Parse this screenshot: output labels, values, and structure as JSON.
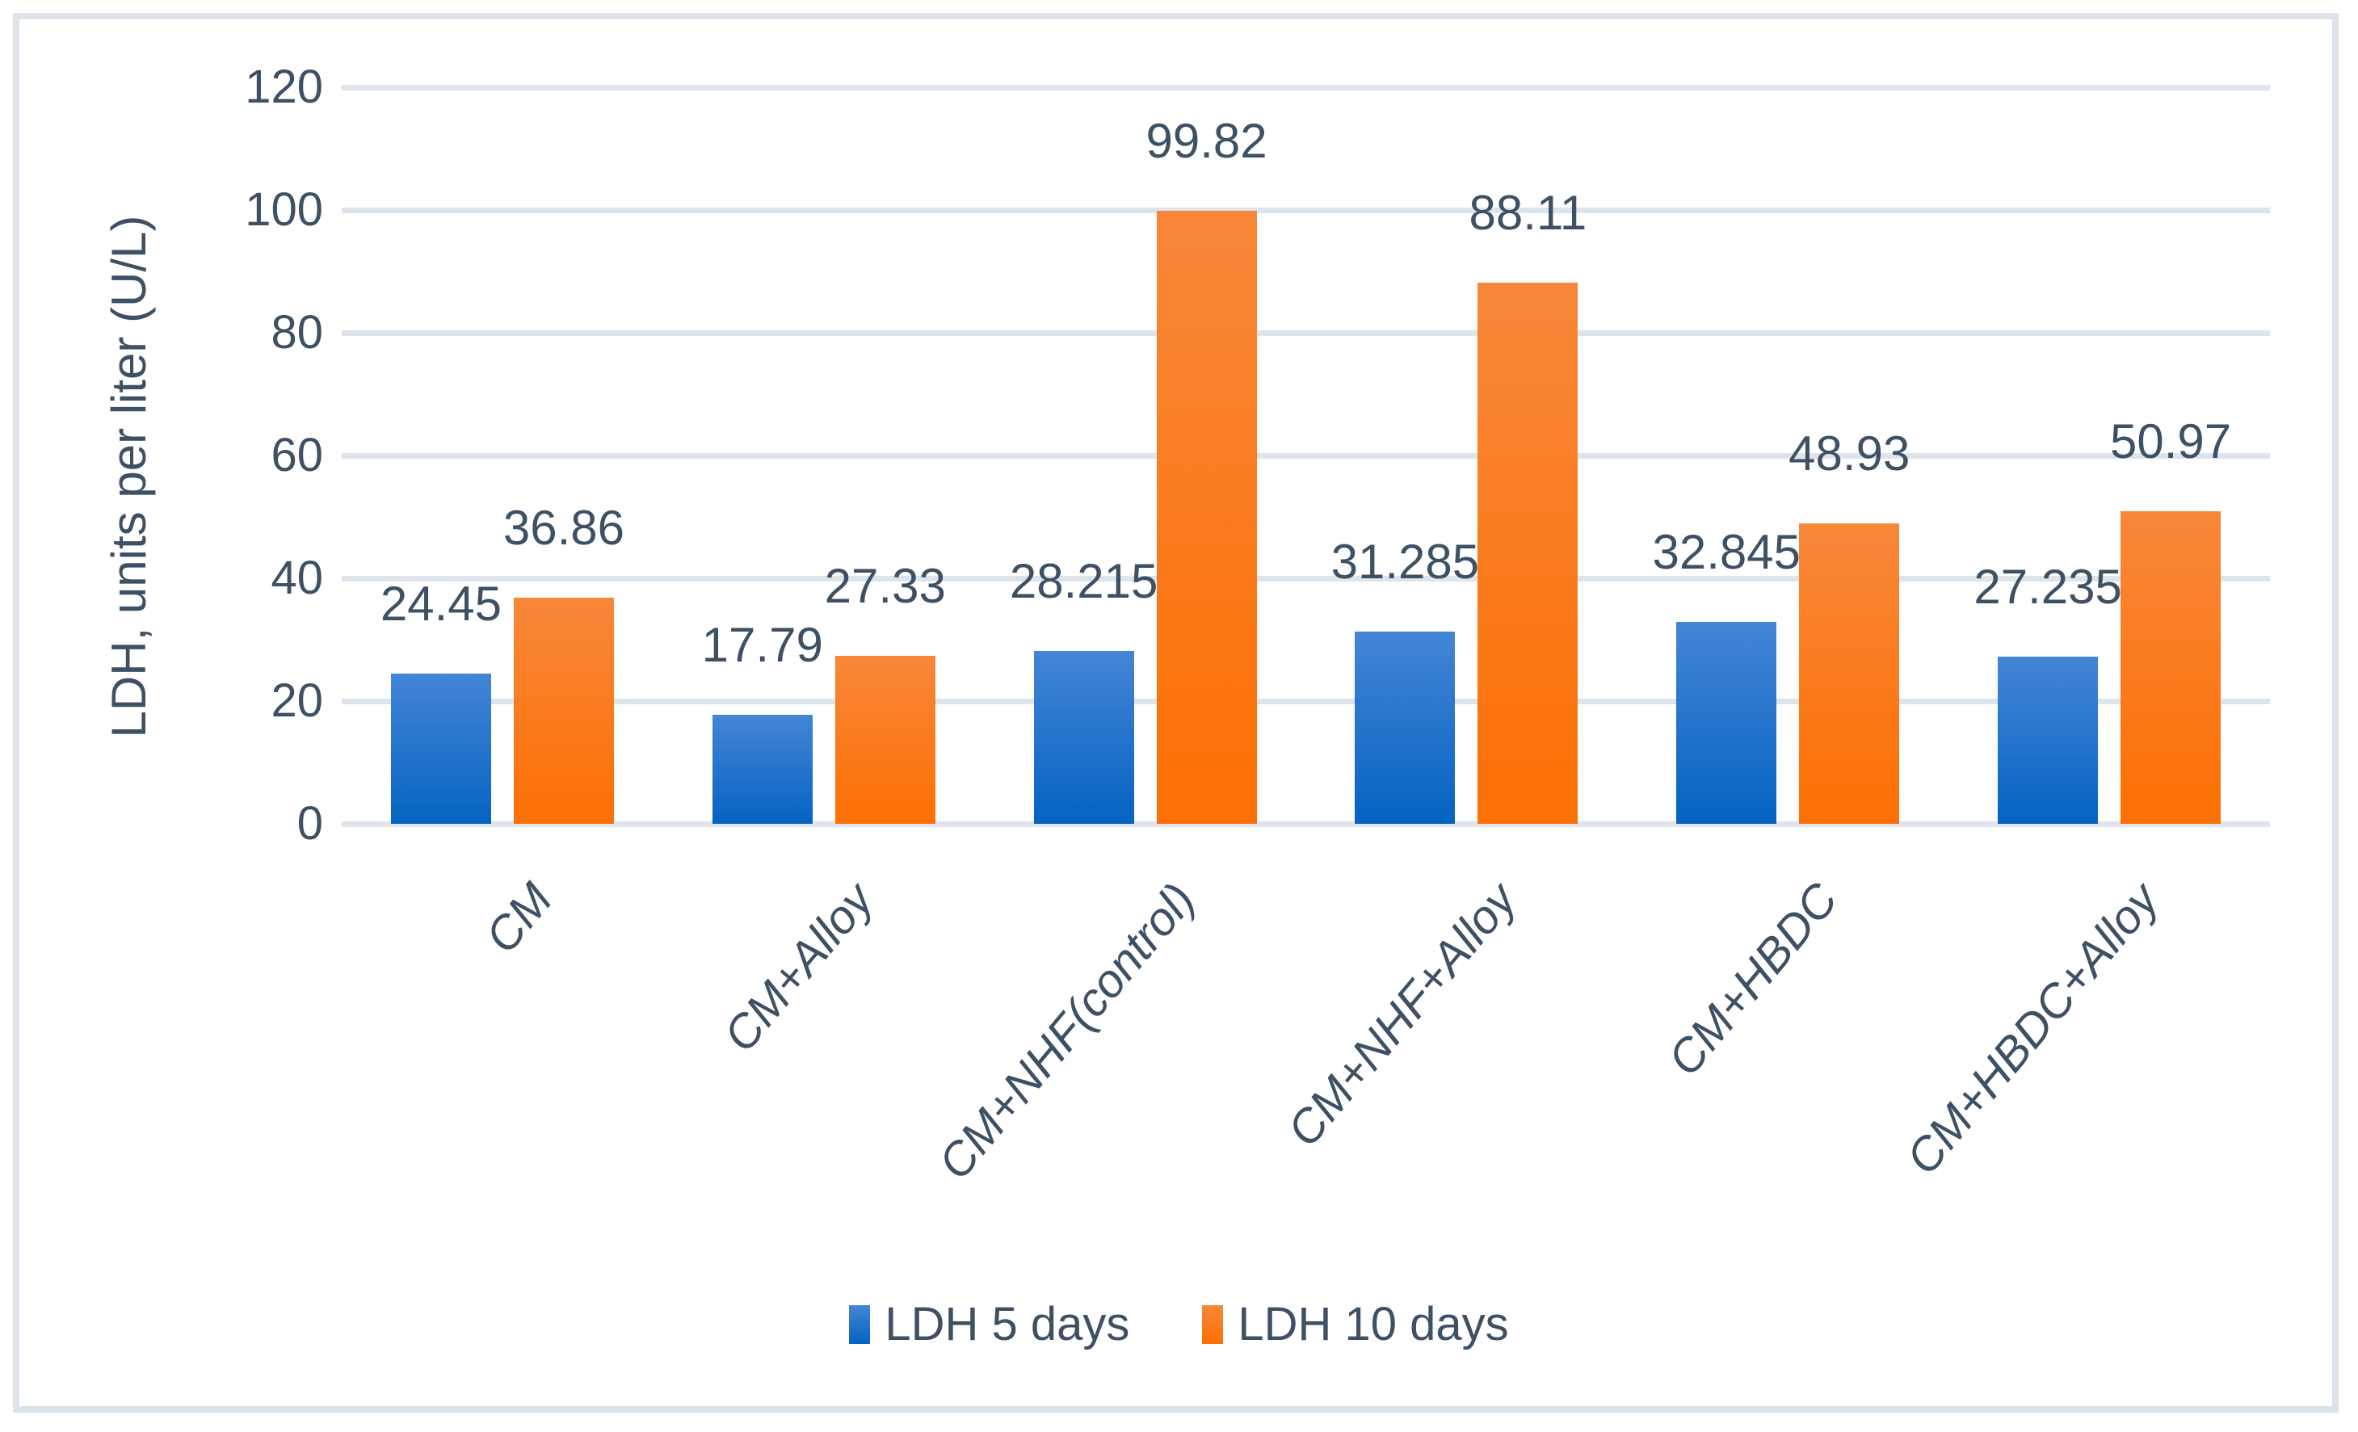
{
  "chart_data": {
    "type": "bar",
    "title": "",
    "categories": [
      "CM",
      "CM+Alloy",
      "CM+NHF(control)",
      "CM+NHF+Alloy",
      "CM+HBDC",
      "CM+HBDC+Alloy"
    ],
    "series": [
      {
        "name": "LDH 5 days",
        "values": [
          24.45,
          17.79,
          28.215,
          31.285,
          32.845,
          27.235
        ],
        "labels": [
          "24.45",
          "17.79",
          "28.215",
          "31.285",
          "32.845",
          "27.235"
        ],
        "color_top": "#4485d6",
        "color_bottom": "#0563c1"
      },
      {
        "name": "LDH 10 days",
        "values": [
          36.86,
          27.33,
          99.82,
          88.11,
          48.93,
          50.97
        ],
        "labels": [
          "36.86",
          "27.33",
          "99.82",
          "88.11",
          "48.93",
          "50.97"
        ],
        "color_top": "#f8873a",
        "color_bottom": "#fd7004"
      }
    ],
    "xlabel": "",
    "ylabel": "LDH, units per liter (U/L)",
    "ylim": [
      0,
      120
    ],
    "yticks": [
      0,
      20,
      40,
      60,
      80,
      100,
      120
    ],
    "grid": true,
    "legend_position": "bottom",
    "data_labels_shown": true
  },
  "colors": {
    "text": "#3d5064",
    "gridline": "#dde4eb",
    "frame_border": "#dce3eb",
    "background": "#ffffff",
    "series1_top": "#4485d6",
    "series1_bottom": "#0563c1",
    "series2_top": "#f8873a",
    "series2_bottom": "#fd7004"
  }
}
